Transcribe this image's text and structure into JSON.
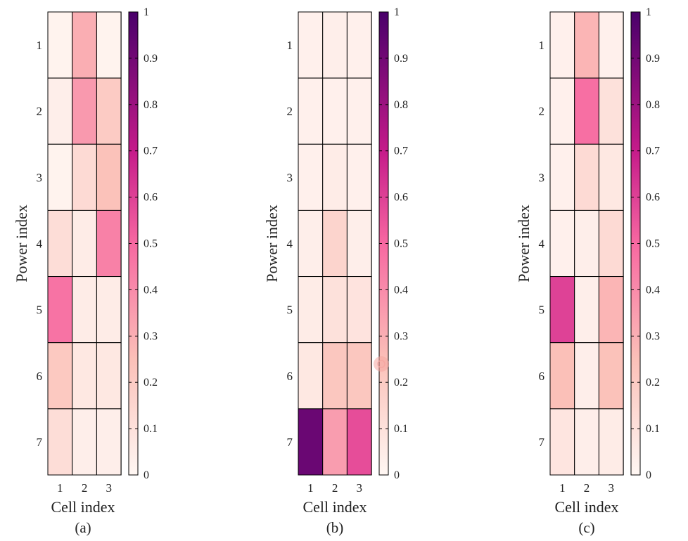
{
  "colormap": {
    "name": "white-pink-purple",
    "stops": [
      {
        "v": 0.0,
        "color": "#fff7f3"
      },
      {
        "v": 0.25,
        "color": "#fbc0b8"
      },
      {
        "v": 0.5,
        "color": "#f768a1"
      },
      {
        "v": 0.7,
        "color": "#c51b8a"
      },
      {
        "v": 1.0,
        "color": "#49006a"
      }
    ]
  },
  "chart_data": [
    {
      "type": "heatmap",
      "panel_label": "(a)",
      "xlabel": "Cell index",
      "ylabel": "Power index",
      "x_ticks": [
        "1",
        "2",
        "3"
      ],
      "y_ticks": [
        "1",
        "2",
        "3",
        "4",
        "5",
        "6",
        "7"
      ],
      "colorbar": {
        "range": [
          0,
          1
        ],
        "ticks": [
          "0",
          "0.1",
          "0.2",
          "0.3",
          "0.4",
          "0.5",
          "0.6",
          "0.7",
          "0.8",
          "0.9",
          "1"
        ]
      },
      "values": [
        [
          0.02,
          0.3,
          0.02
        ],
        [
          0.04,
          0.36,
          0.2
        ],
        [
          0.02,
          0.13,
          0.24
        ],
        [
          0.12,
          0.05,
          0.43
        ],
        [
          0.47,
          0.05,
          0.05
        ],
        [
          0.21,
          0.07,
          0.07
        ],
        [
          0.12,
          0.04,
          0.04
        ]
      ]
    },
    {
      "type": "heatmap",
      "panel_label": "(b)",
      "xlabel": "Cell index",
      "ylabel": "Power index",
      "x_ticks": [
        "1",
        "2",
        "3"
      ],
      "y_ticks": [
        "1",
        "2",
        "3",
        "4",
        "5",
        "6",
        "7"
      ],
      "colorbar": {
        "range": [
          0,
          1
        ],
        "ticks": [
          "0",
          "0.1",
          "0.2",
          "0.3",
          "0.4",
          "0.5",
          "0.6",
          "0.7",
          "0.8",
          "0.9",
          "1"
        ]
      },
      "values": [
        [
          0.03,
          0.04,
          0.03
        ],
        [
          0.03,
          0.03,
          0.03
        ],
        [
          0.03,
          0.05,
          0.03
        ],
        [
          0.04,
          0.16,
          0.04
        ],
        [
          0.05,
          0.1,
          0.09
        ],
        [
          0.07,
          0.22,
          0.22
        ],
        [
          0.92,
          0.35,
          0.57
        ]
      ]
    },
    {
      "type": "heatmap",
      "panel_label": "(c)",
      "xlabel": "Cell index",
      "ylabel": "Power index",
      "x_ticks": [
        "1",
        "2",
        "3"
      ],
      "y_ticks": [
        "1",
        "2",
        "3",
        "4",
        "5",
        "6",
        "7"
      ],
      "colorbar": {
        "range": [
          0,
          1
        ],
        "ticks": [
          "0",
          "0.1",
          "0.2",
          "0.3",
          "0.4",
          "0.5",
          "0.6",
          "0.7",
          "0.8",
          "0.9",
          "1"
        ]
      },
      "values": [
        [
          0.03,
          0.28,
          0.03
        ],
        [
          0.03,
          0.48,
          0.1
        ],
        [
          0.03,
          0.13,
          0.07
        ],
        [
          0.03,
          0.04,
          0.13
        ],
        [
          0.6,
          0.04,
          0.28
        ],
        [
          0.25,
          0.04,
          0.24
        ],
        [
          0.08,
          0.04,
          0.05
        ]
      ]
    }
  ]
}
